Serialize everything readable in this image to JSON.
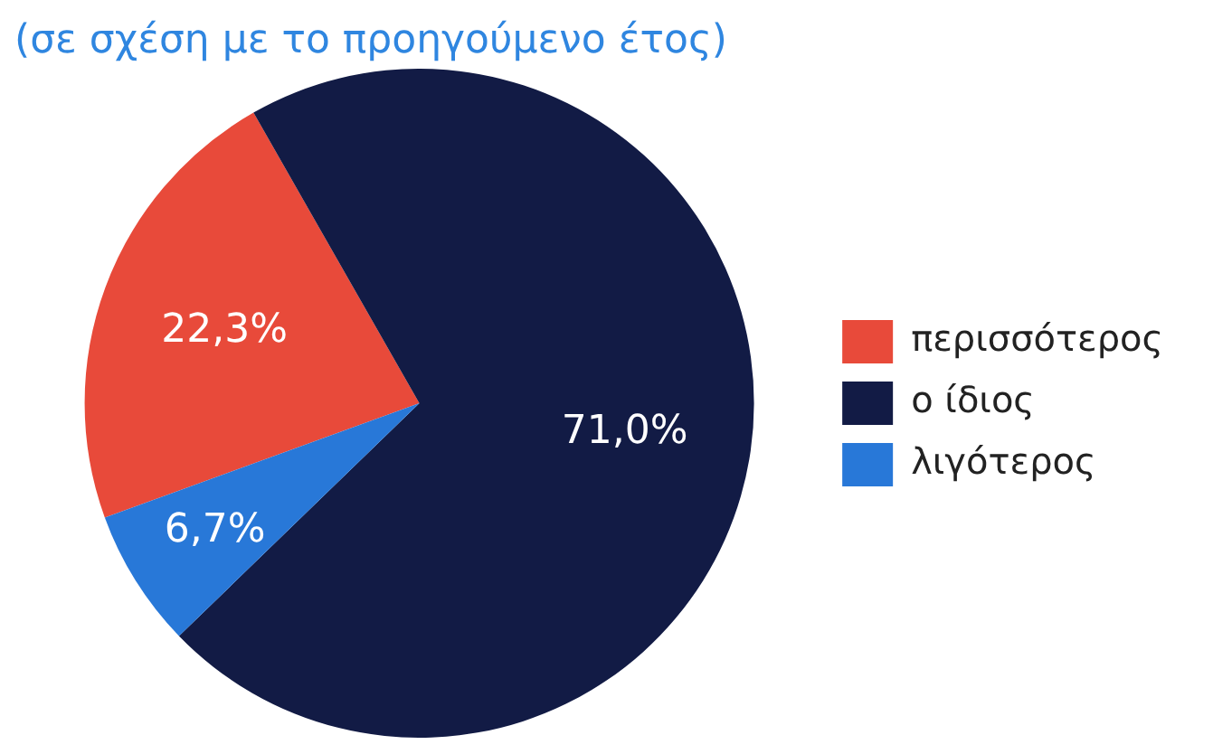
{
  "chart_data": {
    "type": "pie",
    "subtitle": "(σε σχέση με το προηγούμενο έτος)",
    "categories": [
      "περισσότερος",
      "ο ίδιος",
      "λιγότερος"
    ],
    "values": [
      22.3,
      71.0,
      6.7
    ],
    "value_labels": [
      "22,3%",
      "71,0%",
      "6,7%"
    ],
    "colors": [
      "#e84a3a",
      "#121b45",
      "#2878d8"
    ],
    "legend": "right"
  }
}
